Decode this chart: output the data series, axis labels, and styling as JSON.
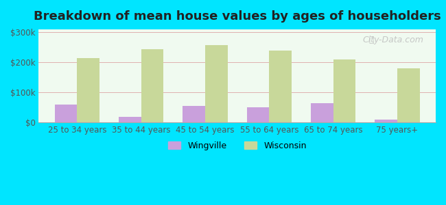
{
  "categories": [
    "25 to 34 years",
    "35 to 44 years",
    "45 to 54 years",
    "55 to 64 years",
    "65 to 74 years",
    "75 years+"
  ],
  "wingville": [
    60000,
    20000,
    55000,
    50000,
    65000,
    10000
  ],
  "wisconsin": [
    215000,
    245000,
    257000,
    240000,
    210000,
    180000
  ],
  "wingville_color": "#c9a0dc",
  "wisconsin_color": "#c8d89a",
  "background_outer": "#00e5ff",
  "background_inner": "#f0faf0",
  "title": "Breakdown of mean house values by ages of householders",
  "title_fontsize": 13,
  "ylabel_ticks": [
    "$0",
    "$100k",
    "$200k",
    "$300k"
  ],
  "ytick_values": [
    0,
    100000,
    200000,
    300000
  ],
  "ylim": [
    0,
    310000
  ],
  "bar_width": 0.35,
  "legend_labels": [
    "Wingville",
    "Wisconsin"
  ],
  "watermark": "City-Data.com"
}
